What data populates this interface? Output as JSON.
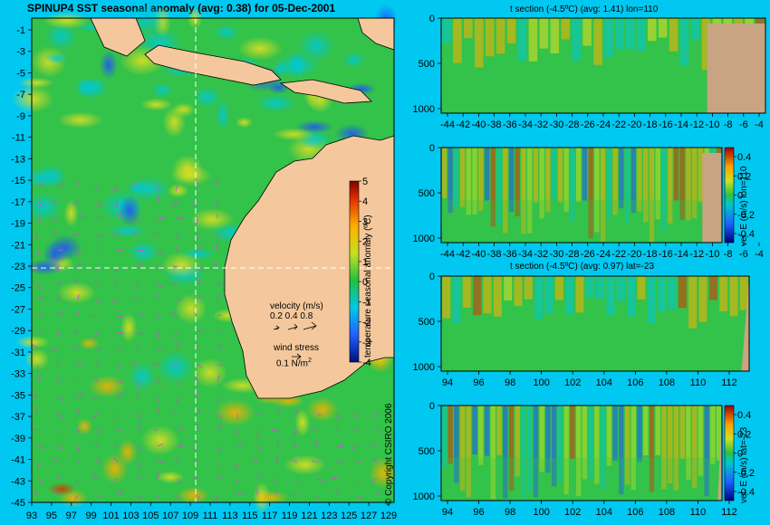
{
  "map": {
    "title": "SPINUP4 SST seasonal anomaly (avg: 0.38) for 05-Dec-2001",
    "lat_ticks": [
      "-1",
      "-3",
      "-5",
      "-7",
      "-9",
      "-11",
      "-13",
      "-15",
      "-17",
      "-19",
      "-21",
      "-23",
      "-25",
      "-27",
      "-29",
      "-31",
      "-33",
      "-35",
      "-37",
      "-39",
      "-41",
      "-43",
      "-45"
    ],
    "lon_ticks": [
      "93",
      "95",
      "97",
      "99",
      "101",
      "103",
      "105",
      "107",
      "109",
      "111",
      "113",
      "115",
      "117",
      "119",
      "121",
      "123",
      "125",
      "127",
      "129"
    ],
    "colorbar_ticks": [
      "5",
      "4",
      "3",
      "2",
      "1",
      "0",
      "-1",
      "-2",
      "-3",
      "-4"
    ],
    "colorbar_label": "temperature seasonal anomaly (ºC)",
    "velocity_label": "velocity (m/s)",
    "velocity_values": "0.2 0.4 0.8",
    "wind_label": "wind stress",
    "wind_value": "0.1 N/m",
    "wind_sup": "2",
    "copyright": "© Copyright CSIRO 2006",
    "section_lon": 110,
    "section_lat": -23,
    "colors": {
      "land": "#f4c89c",
      "ocean_base": "#33c24a",
      "vector": "#e040e0"
    }
  },
  "panels": [
    {
      "title": "t section (-4.5ºC) (avg: 1.41) lon=110",
      "x_ticks": [
        "-44",
        "-42",
        "-40",
        "-38",
        "-36",
        "-34",
        "-32",
        "-30",
        "-28",
        "-26",
        "-24",
        "-22",
        "-20",
        "-18",
        "-16",
        "-14",
        "-12",
        "-10",
        "-8",
        "-6",
        "-4"
      ],
      "y_ticks": [
        "0",
        "500",
        "1000"
      ]
    },
    {
      "title": "",
      "x_ticks": [
        "-44",
        "-42",
        "-40",
        "-38",
        "-36",
        "-34",
        "-32",
        "-30",
        "-28",
        "-26",
        "-24",
        "-22",
        "-20",
        "-18",
        "-16",
        "-14",
        "-12",
        "-10",
        "-8",
        "-6",
        "-4"
      ],
      "y_ticks": [
        "0",
        "500",
        "1000"
      ],
      "cb_ticks": [
        "0.4",
        "0.2",
        "0",
        "-0.2",
        "-0.4"
      ],
      "cb_label": "vel. E (m/s) lon=110"
    },
    {
      "title": "t section (-4.5ºC) (avg: 0.97) lat=-23",
      "x_ticks": [
        "94",
        "96",
        "98",
        "100",
        "102",
        "104",
        "106",
        "108",
        "110",
        "112"
      ],
      "y_ticks": [
        "0",
        "500",
        "1000"
      ]
    },
    {
      "title": "",
      "x_ticks": [
        "94",
        "96",
        "98",
        "100",
        "102",
        "104",
        "106",
        "108",
        "110",
        "112"
      ],
      "y_ticks": [
        "0",
        "500",
        "1000"
      ],
      "cb_ticks": [
        "0.4",
        "0.2",
        "0",
        "-0.2",
        "-0.4"
      ],
      "cb_label": "vel. E (m/s) lat=-23"
    }
  ],
  "chart_data": [
    {
      "type": "heatmap",
      "title": "SPINUP4 SST seasonal anomaly (avg: 0.38) for 05-Dec-2001",
      "x_axis": "longitude",
      "xlim": [
        93,
        130
      ],
      "ylim": [
        -45,
        0
      ],
      "colorbar_range": [
        -4,
        5
      ],
      "colorbar_label": "temperature seasonal anomaly (ºC)"
    },
    {
      "type": "heatmap",
      "title": "t section (-4.5ºC) (avg: 1.41) lon=110",
      "xlim": [
        -45,
        -3
      ],
      "ylim": [
        1050,
        0
      ]
    },
    {
      "type": "heatmap",
      "title": "",
      "xlim": [
        -45,
        -3
      ],
      "ylim": [
        1050,
        0
      ],
      "colorbar_range": [
        -0.5,
        0.5
      ],
      "colorbar_label": "vel. E (m/s) lon=110"
    },
    {
      "type": "heatmap",
      "title": "t section (-4.5ºC) (avg: 0.97) lat=-23",
      "xlim": [
        93,
        114
      ],
      "ylim": [
        1050,
        0
      ]
    },
    {
      "type": "heatmap",
      "title": "",
      "xlim": [
        93,
        114
      ],
      "ylim": [
        1050,
        0
      ],
      "colorbar_range": [
        -0.5,
        0.5
      ],
      "colorbar_label": "vel. E (m/s) lat=-23"
    }
  ]
}
